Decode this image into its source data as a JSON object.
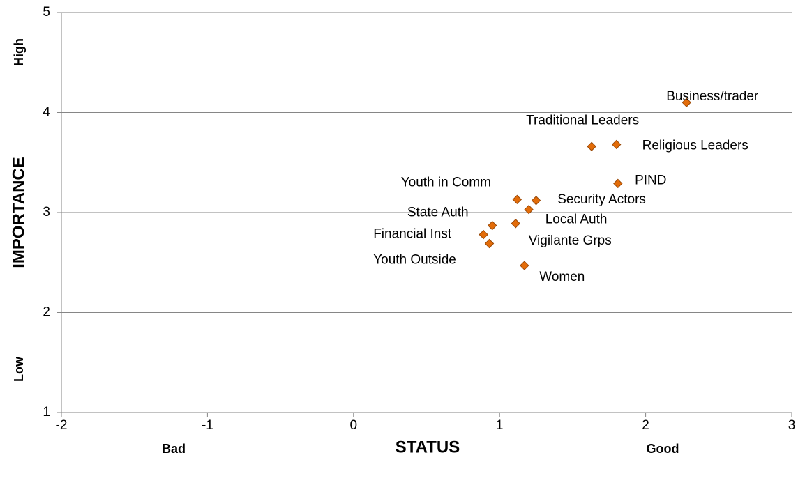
{
  "chart_data": {
    "type": "scatter",
    "x_label": "STATUS",
    "y_label": "IMPORTANCE",
    "annotations": {
      "x_low": "Bad",
      "x_high": "Good",
      "y_low": "Low",
      "y_high": "High"
    },
    "xlim": [
      -2,
      3
    ],
    "xticks": [
      -2,
      -1,
      0,
      1,
      2,
      3
    ],
    "ylim": [
      1,
      5
    ],
    "yticks": [
      1,
      2,
      3,
      4,
      5
    ],
    "grid": true,
    "color": "#e36c09",
    "points": [
      {
        "label": "Business/trader",
        "x": 2.28,
        "y": 4.1
      },
      {
        "label": "Traditional Leaders",
        "x": 1.63,
        "y": 3.66
      },
      {
        "label": "Religious Leaders",
        "x": 1.8,
        "y": 3.68
      },
      {
        "label": "PIND",
        "x": 1.81,
        "y": 3.29
      },
      {
        "label": "Youth in Comm",
        "x": 1.12,
        "y": 3.13
      },
      {
        "label": "Security Actors",
        "x": 1.25,
        "y": 3.12
      },
      {
        "label": "Local Auth",
        "x": 1.2,
        "y": 3.03
      },
      {
        "label": "State Auth",
        "x": 0.95,
        "y": 2.87
      },
      {
        "label": "Vigilante Grps",
        "x": 1.11,
        "y": 2.89
      },
      {
        "label": "Financial Inst",
        "x": 0.89,
        "y": 2.78
      },
      {
        "label": "Youth Outside",
        "x": 0.93,
        "y": 2.69
      },
      {
        "label": "Women",
        "x": 1.17,
        "y": 2.47
      }
    ]
  }
}
